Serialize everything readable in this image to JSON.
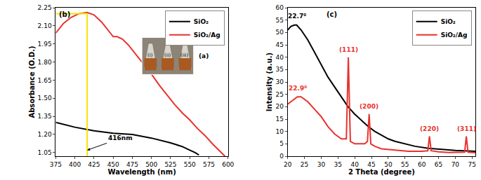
{
  "chart_data": [
    {
      "type": "line",
      "title": "(b)",
      "x_label": "Wavelength (nm)",
      "y_label": "Absorbance (O.D.)",
      "xlim": [
        375,
        600
      ],
      "xticks": [
        375,
        400,
        425,
        450,
        475,
        500,
        525,
        550,
        575,
        600
      ],
      "ylim": [
        1.02,
        2.25
      ],
      "yticks": [
        1.05,
        {
          "value": 1.2,
          "label": "1.20"
        },
        1.35,
        {
          "value": 1.5,
          "label": "1.50"
        },
        1.65,
        {
          "value": 1.8,
          "label": "1.80"
        },
        1.95,
        {
          "value": 2.1,
          "label": "2.10"
        },
        2.25
      ],
      "grid": false,
      "legend": "upper right",
      "series": [
        {
          "name": "SiO₂",
          "color": "#000000",
          "x": [
            375,
            400,
            425,
            450,
            475,
            500,
            525,
            540,
            550,
            557,
            562
          ],
          "values": [
            1.3,
            1.26,
            1.23,
            1.21,
            1.2,
            1.17,
            1.13,
            1.1,
            1.07,
            1.05,
            1.03
          ]
        },
        {
          "name": "SiO₂/Ag",
          "color": "#e8322d",
          "x": [
            375,
            385,
            395,
            405,
            416,
            425,
            435,
            445,
            450,
            455,
            462,
            470,
            480,
            490,
            500,
            510,
            520,
            530,
            540,
            550,
            560,
            570,
            580,
            590,
            596
          ],
          "values": [
            2.04,
            2.12,
            2.17,
            2.2,
            2.21,
            2.19,
            2.13,
            2.05,
            2.01,
            2.01,
            1.99,
            1.94,
            1.86,
            1.78,
            1.7,
            1.61,
            1.53,
            1.45,
            1.38,
            1.32,
            1.25,
            1.19,
            1.12,
            1.06,
            1.02
          ]
        }
      ],
      "peak": {
        "x": 416,
        "y": 2.2,
        "color": "#f2e600"
      },
      "annotations": [
        {
          "text": "416nm",
          "x": 416,
          "y": 1.07,
          "color": "#000000"
        }
      ],
      "inset": {
        "title": "(a)",
        "labels": [
          "(i)",
          "(ii)",
          "(iii)"
        ]
      }
    },
    {
      "type": "line",
      "title": "(c)",
      "x_label": "2 Theta (degree)",
      "y_label": "Intensity (a.u.)",
      "xlim": [
        20,
        76
      ],
      "xticks": [
        20,
        25,
        30,
        35,
        40,
        45,
        50,
        55,
        60,
        65,
        70,
        75
      ],
      "ylim": [
        0,
        60
      ],
      "yticks": [
        0,
        5,
        10,
        15,
        20,
        25,
        30,
        35,
        40,
        45,
        50,
        55,
        60
      ],
      "grid": false,
      "legend": "upper right",
      "series": [
        {
          "name": "SiO₂",
          "color": "#000000",
          "x": [
            20,
            21,
            22,
            22.7,
            24,
            26,
            28,
            30,
            32,
            34,
            36,
            38,
            40,
            42,
            44,
            46,
            48,
            50,
            52,
            55,
            58,
            62,
            66,
            70,
            76
          ],
          "values": [
            51,
            52.5,
            53,
            53,
            51,
            47,
            42,
            37,
            32,
            28,
            24,
            20,
            17,
            14.5,
            12,
            10,
            8.5,
            7,
            6,
            5,
            4,
            3.2,
            2.7,
            2.3,
            2
          ]
        },
        {
          "name": "SiO₂/Ag",
          "color": "#e8322d",
          "x": [
            20,
            21,
            22.9,
            24,
            26,
            28,
            30,
            32,
            34,
            36,
            37.5,
            38.1,
            38.7,
            40,
            43,
            43.8,
            44.3,
            44.8,
            46,
            48,
            52,
            56,
            60,
            61.8,
            62.3,
            62.8,
            65,
            68,
            72.8,
            73.3,
            73.8,
            76
          ],
          "values": [
            21,
            22,
            24,
            24,
            22,
            19,
            16,
            12,
            9,
            7,
            7,
            40,
            6,
            5,
            5,
            6,
            17,
            5,
            4,
            3,
            2.5,
            2,
            2,
            2.2,
            8,
            2.2,
            1.8,
            1.5,
            1.6,
            8,
            1.6,
            1.4
          ]
        }
      ],
      "annotations": [
        {
          "text": "22.7⁰",
          "x": 22.7,
          "y": 54.5,
          "color": "#000000"
        },
        {
          "text": "22.9⁰",
          "x": 22.9,
          "y": 25.5,
          "color": "#e8322d"
        },
        {
          "text": "(111)",
          "x": 38.1,
          "y": 41,
          "color": "#e8322d"
        },
        {
          "text": "(200)",
          "x": 44.3,
          "y": 18,
          "color": "#e8322d"
        },
        {
          "text": "(220)",
          "x": 62.3,
          "y": 9,
          "color": "#e8322d"
        },
        {
          "text": "(311)",
          "x": 73.3,
          "y": 9,
          "color": "#e8322d"
        }
      ]
    }
  ]
}
